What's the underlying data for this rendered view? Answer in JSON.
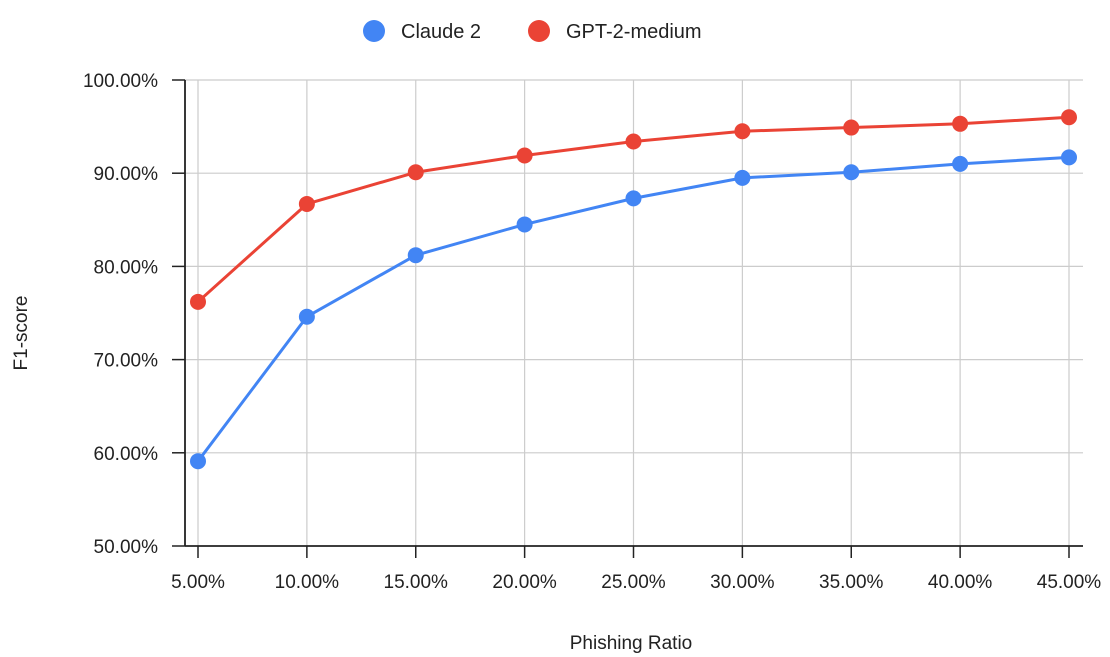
{
  "chart_data": {
    "type": "line",
    "title": "",
    "xlabel": "Phishing Ratio",
    "ylabel": "F1-score",
    "categories": [
      "5.00%",
      "10.00%",
      "15.00%",
      "20.00%",
      "25.00%",
      "30.00%",
      "35.00%",
      "40.00%",
      "45.00%"
    ],
    "x": [
      5,
      10,
      15,
      20,
      25,
      30,
      35,
      40,
      45
    ],
    "yticks": [
      "50.00%",
      "60.00%",
      "70.00%",
      "80.00%",
      "90.00%",
      "100.00%"
    ],
    "ylim": [
      50,
      100
    ],
    "grid": true,
    "legend_position": "top-center",
    "series": [
      {
        "name": "Claude 2",
        "color": "#4285f4",
        "values": [
          59.1,
          74.6,
          81.2,
          84.5,
          87.3,
          89.5,
          90.1,
          91.0,
          91.7
        ]
      },
      {
        "name": "GPT-2-medium",
        "color": "#ea4335",
        "values": [
          76.2,
          86.7,
          90.1,
          91.9,
          93.4,
          94.5,
          94.9,
          95.3,
          96.0
        ]
      }
    ]
  }
}
